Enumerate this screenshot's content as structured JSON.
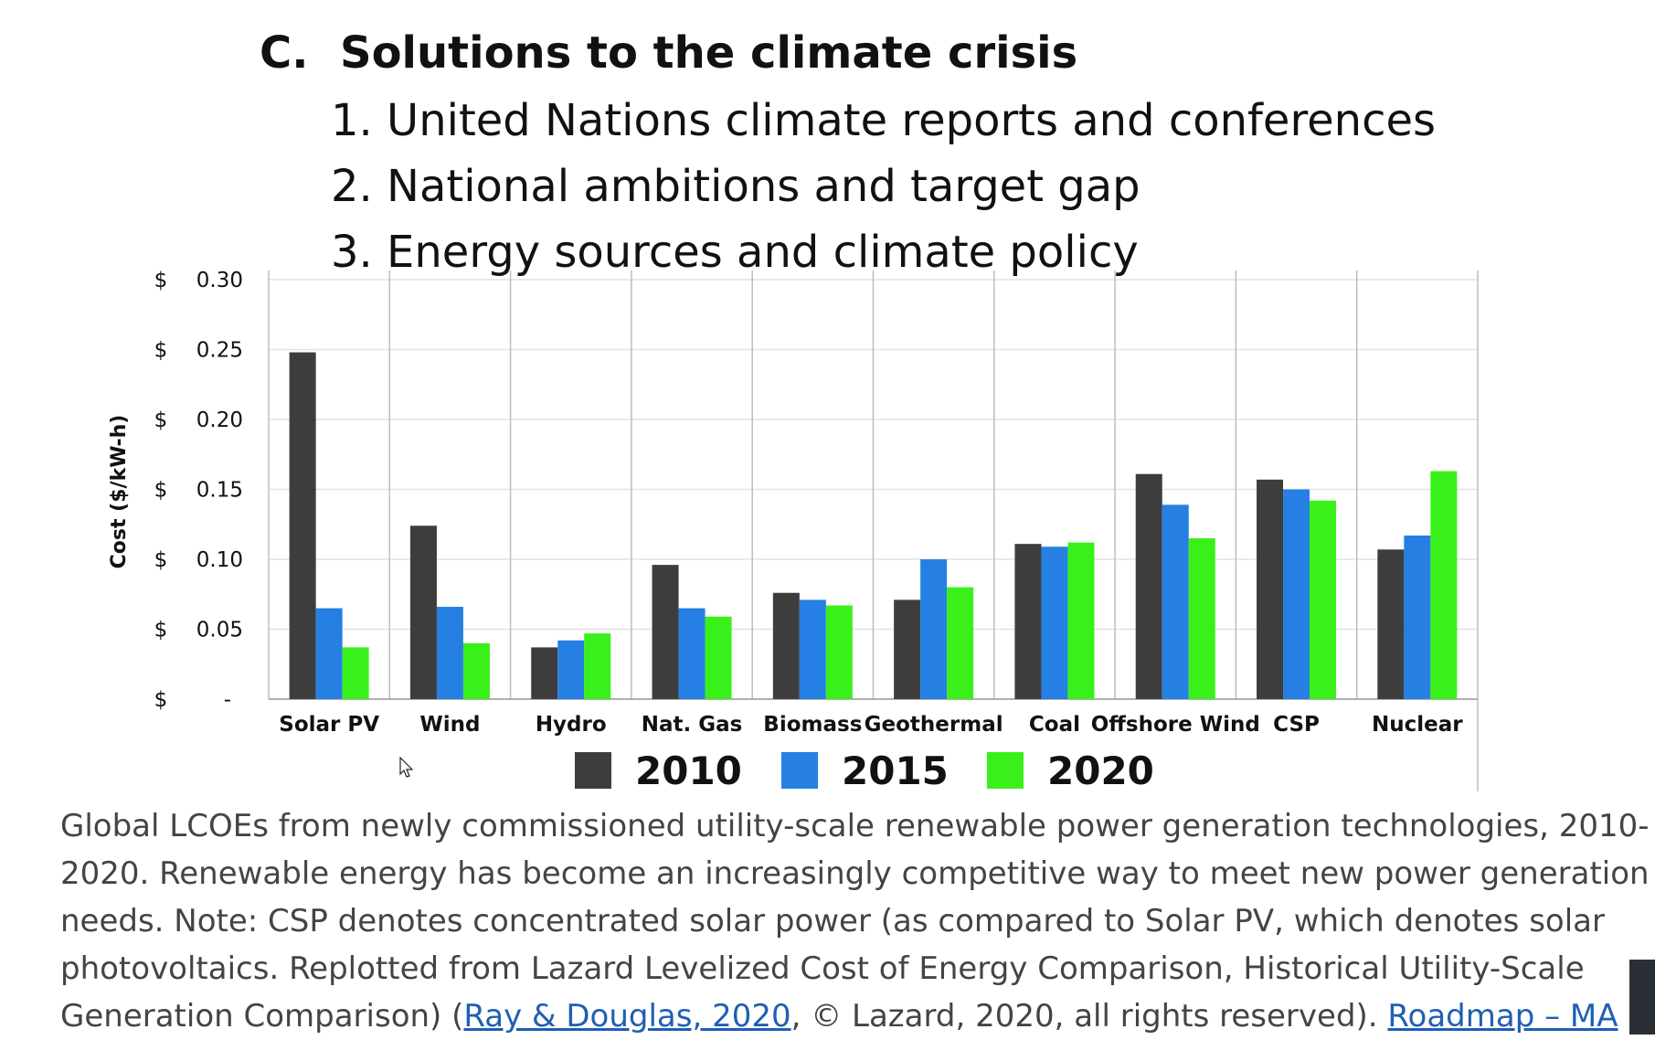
{
  "heading": {
    "letter": "C.",
    "title": "Solutions to the climate crisis"
  },
  "outline": [
    "1. United Nations climate reports and conferences",
    "2. National ambitions and target gap",
    "3. Energy sources and climate policy"
  ],
  "chart_data": {
    "type": "bar",
    "categories": [
      "Solar PV",
      "Wind",
      "Hydro",
      "Nat. Gas",
      "Biomass",
      "Geothermal",
      "Coal",
      "Offshore Wind",
      "CSP",
      "Nuclear"
    ],
    "series": [
      {
        "name": "2010",
        "color": "#3d3d3d",
        "values": [
          0.248,
          0.124,
          0.037,
          0.096,
          0.076,
          0.071,
          0.111,
          0.161,
          0.157,
          0.107
        ]
      },
      {
        "name": "2015",
        "color": "#2680e3",
        "values": [
          0.065,
          0.066,
          0.042,
          0.065,
          0.071,
          0.1,
          0.109,
          0.139,
          0.15,
          0.117
        ]
      },
      {
        "name": "2020",
        "color": "#39f01a",
        "values": [
          0.037,
          0.04,
          0.047,
          0.059,
          0.067,
          0.08,
          0.112,
          0.115,
          0.142,
          0.163
        ]
      }
    ],
    "ylabel": "Cost ($/kW-h)",
    "ylim": [
      0,
      0.3
    ],
    "yticks": [
      {
        "value": 0.3,
        "currency": "$",
        "label": "0.30"
      },
      {
        "value": 0.25,
        "currency": "$",
        "label": "0.25"
      },
      {
        "value": 0.2,
        "currency": "$",
        "label": "0.20"
      },
      {
        "value": 0.15,
        "currency": "$",
        "label": "0.15"
      },
      {
        "value": 0.1,
        "currency": "$",
        "label": "0.10"
      },
      {
        "value": 0.05,
        "currency": "$",
        "label": "0.05"
      },
      {
        "value": 0.0,
        "currency": "$",
        "label": "-"
      }
    ],
    "grid": true,
    "legend_position": "bottom"
  },
  "caption": {
    "line1": "Global LCOEs from newly commissioned utility-scale renewable power generation technologies, 2010-",
    "line2": "2020. Renewable energy has become an increasingly competitive way to meet new power generation",
    "line3": "needs. Note: CSP denotes concentrated solar power (as compared to Solar PV, which denotes solar",
    "line4": "photovoltaics. Replotted from Lazard Levelized Cost of Energy Comparison, Historical Utility-Scale",
    "line5_prefix": "Generation Comparison) (",
    "link1": "Ray & Douglas, 2020",
    "line5_middle": ", © Lazard, 2020, all rights reserved). ",
    "link2": "Roadmap – MA"
  }
}
